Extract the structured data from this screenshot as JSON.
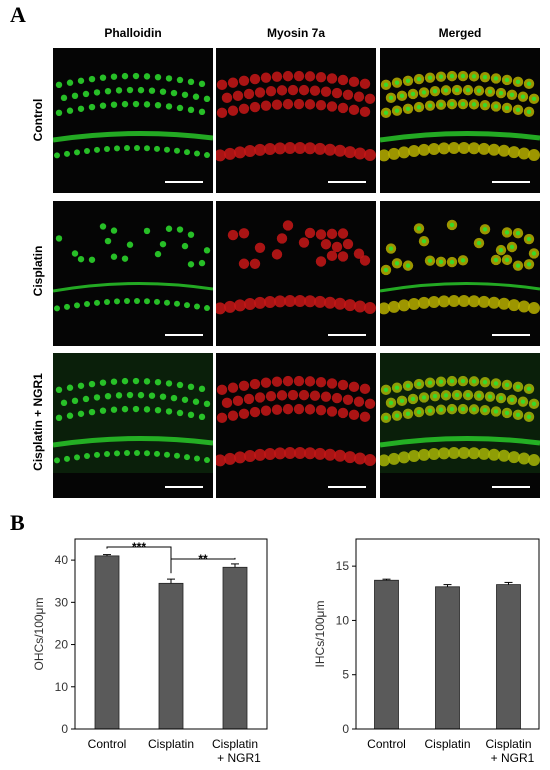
{
  "panel_a": {
    "letter": "A",
    "columns": [
      "Phalloidin",
      "Myosin 7a",
      "Merged"
    ],
    "rows": [
      "Control",
      "Cisplatin",
      "Cisplatin + NGR1"
    ]
  },
  "panel_b": {
    "letter": "B"
  },
  "colors": {
    "bar": "#5a5a5a",
    "green_stain": "#2ee02e",
    "red_stain": "#c81818",
    "merge": "#b8b000"
  },
  "chart_data": [
    {
      "type": "bar",
      "categories": [
        [
          "Control"
        ],
        [
          "Cisplatin"
        ],
        [
          "Cisplatin",
          "+ NGR1"
        ]
      ],
      "values": [
        41,
        34.5,
        38.3
      ],
      "errors": [
        0.3,
        1.0,
        0.8
      ],
      "ylabel": "OHCs/100μm",
      "ylim": [
        0,
        45
      ],
      "yticks": [
        0,
        10,
        20,
        30,
        40
      ],
      "significance": [
        {
          "from": 0,
          "to": 1,
          "label": "***"
        },
        {
          "from": 1,
          "to": 2,
          "label": "**"
        }
      ]
    },
    {
      "type": "bar",
      "categories": [
        [
          "Control"
        ],
        [
          "Cisplatin"
        ],
        [
          "Cisplatin",
          "+ NGR1"
        ]
      ],
      "values": [
        13.7,
        13.1,
        13.3
      ],
      "errors": [
        0.1,
        0.2,
        0.2
      ],
      "ylabel": "IHCs/100μm",
      "ylim": [
        0,
        17.5
      ],
      "yticks": [
        0,
        5,
        10,
        15
      ],
      "significance": []
    }
  ]
}
